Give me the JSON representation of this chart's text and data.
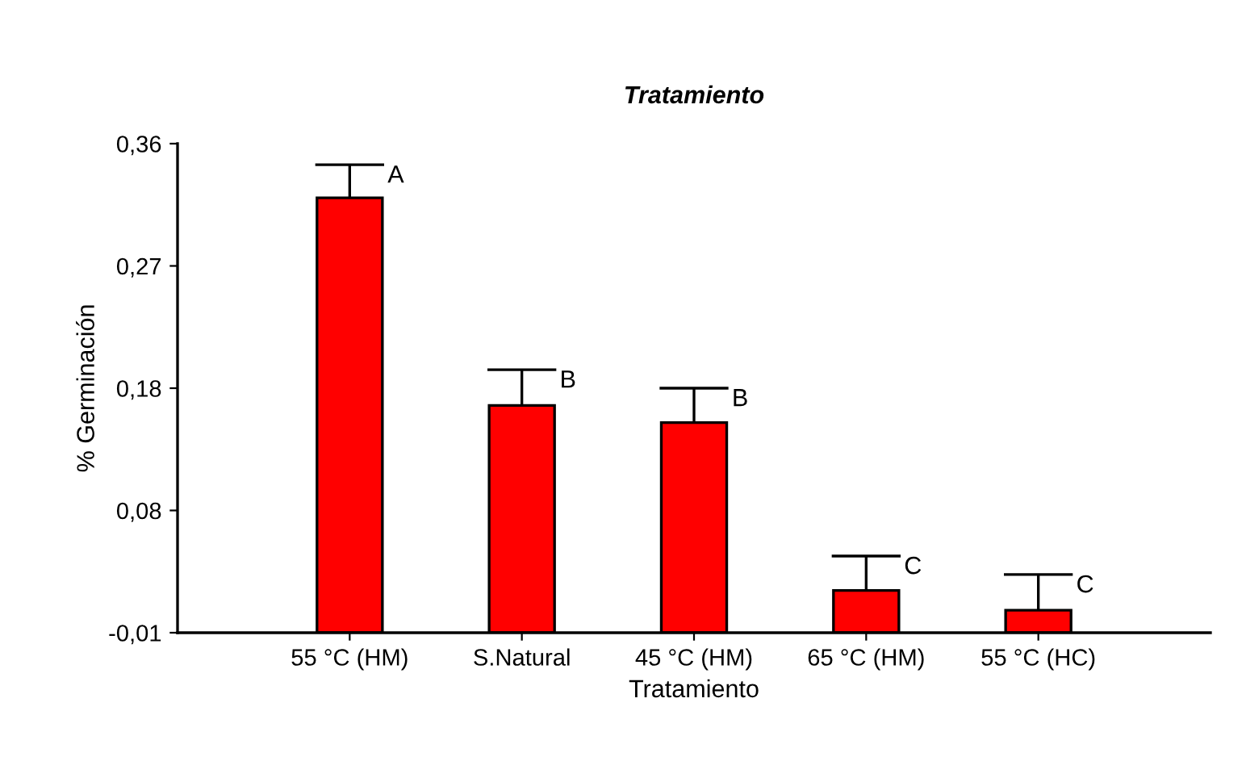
{
  "chart_data": {
    "type": "bar",
    "title": "Tratamiento",
    "xlabel": "Tratamiento",
    "ylabel": "% Germinación",
    "categories": [
      "55 °C (HM)",
      "S.Natural",
      "45 °C (HM)",
      "65 °C (HM)",
      "55 °C (HC)"
    ],
    "base": [
      -0.01,
      -0.01,
      -0.01,
      -0.01,
      -0.01
    ],
    "values": [
      0.329,
      0.172,
      0.159,
      0.032,
      0.017
    ],
    "errors": [
      [
        0.319,
        0.344
      ],
      [
        0.162,
        0.189
      ],
      [
        0.149,
        0.175
      ],
      [
        0.022,
        0.048
      ],
      [
        0.007,
        0.034
      ]
    ],
    "color": "#ff0000",
    "ylim": [
      -0.01,
      0.36
    ],
    "yticks": [
      {
        "value": -0.01,
        "label": "-0,01"
      },
      {
        "value": 0.0825,
        "label": "0,08"
      },
      {
        "value": 0.175,
        "label": "0,18"
      },
      {
        "value": 0.2675,
        "label": "0,27"
      },
      {
        "value": 0.36,
        "label": "0,36"
      }
    ],
    "annotations": [
      "A",
      "B",
      "B",
      "C",
      "C"
    ],
    "grid": false,
    "legend": false
  }
}
